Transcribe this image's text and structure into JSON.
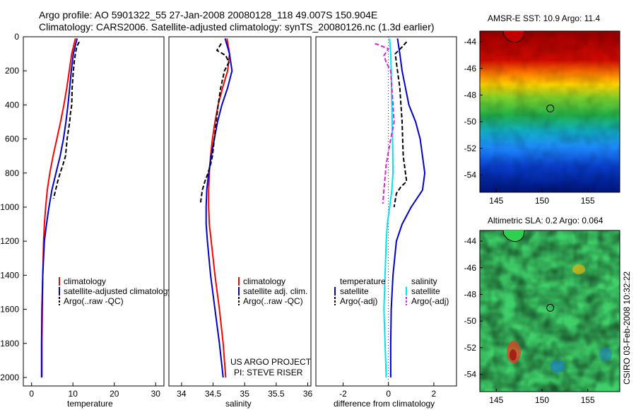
{
  "header": {
    "title_line1": "Argo profile: AO 5901322_55 27-Jan-2008 20080128_118 49.007S 150.904E",
    "title_line2": "Climatology: CARS2006. Satellite-adjusted climatology: synTS_20080126.nc (1.3d earlier)"
  },
  "footer": {
    "project": "US ARGO PROJECT",
    "pi": "PI: STEVE RISER",
    "stamp": "CSIRO 03-Feb-2008 10:32:22"
  },
  "colors": {
    "climatology": "#ff0000",
    "satellite": "#0000cc",
    "argo": "#000000",
    "satellite_cyan": "#00e5ee",
    "argo_magenta": "#e020e0"
  },
  "chart_data": [
    {
      "type": "line",
      "id": "temperature",
      "xlabel": "temperature",
      "xlim": [
        -2,
        32
      ],
      "ylim": [
        0,
        2050
      ],
      "y_reversed": true,
      "xticks": [
        0,
        10,
        20,
        30
      ],
      "yticks": [
        0,
        200,
        400,
        600,
        800,
        1000,
        1200,
        1400,
        1600,
        1800,
        2000
      ],
      "legend": [
        "climatology",
        "satellite-adjusted climatology",
        "Argo(..raw -QC)"
      ],
      "series": [
        {
          "name": "climatology",
          "color": "#ff0000",
          "style": "solid",
          "x": [
            10.6,
            10.2,
            9.7,
            9.1,
            8.5,
            7.8,
            7.0,
            6.1,
            5.2,
            4.4,
            3.8,
            3.4,
            3.1,
            2.9,
            2.7,
            2.6,
            2.5,
            2.5
          ],
          "y": [
            10,
            50,
            100,
            200,
            300,
            400,
            500,
            600,
            700,
            800,
            900,
            1000,
            1100,
            1200,
            1400,
            1600,
            1800,
            2000
          ]
        },
        {
          "name": "satellite-adjusted climatology",
          "color": "#0000cc",
          "style": "solid",
          "x": [
            11.0,
            10.6,
            10.1,
            9.6,
            9.2,
            8.8,
            8.3,
            7.7,
            6.9,
            5.9,
            4.9,
            4.2,
            3.6,
            3.1,
            2.7,
            2.5,
            2.4,
            2.4
          ],
          "y": [
            10,
            50,
            100,
            200,
            300,
            400,
            500,
            600,
            700,
            800,
            900,
            1000,
            1100,
            1200,
            1400,
            1600,
            1800,
            2000
          ]
        },
        {
          "name": "Argo(..raw -QC)",
          "color": "#000000",
          "style": "dashed",
          "x": [
            11.5,
            10.9,
            10.6,
            10.3,
            10.1,
            9.8,
            9.7,
            9.4,
            9.2,
            8.9,
            8.6,
            8.2,
            7.6,
            6.9,
            6.3,
            5.8,
            5.3
          ],
          "y": [
            30,
            60,
            100,
            150,
            200,
            300,
            400,
            450,
            500,
            550,
            600,
            700,
            750,
            800,
            850,
            900,
            950
          ]
        }
      ]
    },
    {
      "type": "line",
      "id": "salinity",
      "xlabel": "salinity",
      "xlim": [
        33.8,
        36.05
      ],
      "ylim": [
        0,
        2050
      ],
      "y_reversed": true,
      "xticks": [
        34,
        34.5,
        35,
        35.5,
        36
      ],
      "xticklabels": [
        "34",
        "34.5",
        "35",
        "35.5",
        "36"
      ],
      "legend": [
        "climatology",
        "satellite adj. clim.",
        "Argo(..raw -QC)"
      ],
      "series": [
        {
          "name": "climatology",
          "color": "#ff0000",
          "style": "solid",
          "x": [
            34.72,
            34.76,
            34.73,
            34.65,
            34.58,
            34.53,
            34.49,
            34.46,
            34.44,
            34.43,
            34.43,
            34.44,
            34.47,
            34.53,
            34.6,
            34.66,
            34.7
          ],
          "y": [
            10,
            100,
            200,
            300,
            400,
            500,
            600,
            700,
            800,
            900,
            1000,
            1100,
            1200,
            1400,
            1600,
            1800,
            2000
          ]
        },
        {
          "name": "satellite adj. clim.",
          "color": "#0000cc",
          "style": "solid",
          "x": [
            34.69,
            34.76,
            34.8,
            34.73,
            34.64,
            34.57,
            34.52,
            34.47,
            34.43,
            34.4,
            34.39,
            34.39,
            34.41,
            34.46,
            34.53,
            34.6,
            34.66
          ],
          "y": [
            10,
            100,
            200,
            300,
            400,
            500,
            600,
            700,
            800,
            900,
            1000,
            1100,
            1200,
            1400,
            1600,
            1800,
            2000
          ]
        },
        {
          "name": "Argo(..raw -QC)",
          "color": "#000000",
          "style": "dashed",
          "x": [
            34.63,
            34.56,
            34.7,
            34.75,
            34.68,
            34.62,
            34.58,
            34.55,
            34.52,
            34.49,
            34.46,
            34.42,
            34.37,
            34.33,
            34.31,
            34.3
          ],
          "y": [
            40,
            80,
            110,
            150,
            200,
            300,
            400,
            500,
            600,
            700,
            750,
            800,
            850,
            900,
            950,
            980
          ]
        }
      ]
    },
    {
      "type": "line",
      "id": "difference",
      "xlabel": "difference from climatology",
      "xlim": [
        -3.2,
        3.0
      ],
      "ylim": [
        0,
        2050
      ],
      "y_reversed": true,
      "xticks": [
        -2,
        0,
        2
      ],
      "legend_group1": {
        "title": "temperature",
        "items": [
          "satellite",
          "Argo(-adj)"
        ]
      },
      "legend_group2": {
        "title": "salinity",
        "items": [
          "satellite",
          "Argo(-adj)"
        ]
      },
      "series": [
        {
          "name": "temperature satellite",
          "color": "#0000cc",
          "style": "solid",
          "x": [
            0.4,
            0.5,
            0.6,
            0.9,
            1.2,
            1.4,
            1.6,
            1.5,
            1.0,
            0.6,
            0.35,
            0.2,
            0.12,
            0.1,
            0.1
          ],
          "y": [
            10,
            100,
            200,
            400,
            500,
            600,
            800,
            900,
            1000,
            1100,
            1200,
            1400,
            1600,
            1800,
            2000
          ]
        },
        {
          "name": "salinity satellite",
          "color": "#00e5ee",
          "style": "solid",
          "x": [
            0.05,
            0.1,
            0.12,
            0.15,
            0.18,
            0.2,
            0.15,
            0.05,
            -0.05,
            -0.1,
            -0.15,
            -0.2,
            -0.15,
            -0.1
          ],
          "y": [
            10,
            100,
            200,
            400,
            600,
            800,
            900,
            1000,
            1100,
            1200,
            1400,
            1600,
            1800,
            2000
          ]
        },
        {
          "name": "temperature Argo(-adj)",
          "color": "#000000",
          "style": "dashed",
          "x": [
            0.8,
            0.6,
            0.3,
            0.4,
            0.5,
            0.55,
            0.6,
            0.65,
            0.8,
            0.55,
            0.35,
            0.3,
            0.25
          ],
          "y": [
            30,
            60,
            100,
            200,
            300,
            400,
            500,
            700,
            850,
            880,
            920,
            960,
            1000
          ]
        },
        {
          "name": "salinity Argo(-adj)",
          "color": "#e020e0",
          "style": "dashed",
          "x": [
            -0.6,
            0.0,
            -0.2,
            -0.1,
            0.1,
            0.15,
            0.2,
            0.25,
            0.1,
            -0.1,
            -0.2,
            -0.25
          ],
          "y": [
            40,
            70,
            110,
            150,
            200,
            300,
            400,
            500,
            600,
            750,
            900,
            980
          ]
        }
      ]
    },
    {
      "type": "heatmap",
      "id": "sst_map",
      "title": "AMSR-E SST: 10.9 Argo: 11.4",
      "xlim": [
        143.2,
        158.5
      ],
      "ylim": [
        -55.3,
        -43.2
      ],
      "xticks": [
        145,
        150,
        155
      ],
      "yticks": [
        -44,
        -46,
        -48,
        -50,
        -52,
        -54
      ],
      "marker": {
        "lon": 150.904,
        "lat": -49.007
      }
    },
    {
      "type": "heatmap",
      "id": "sla_map",
      "title": "Altimetric SLA: 0.2 Argo: 0.064",
      "xlim": [
        143.2,
        158.5
      ],
      "ylim": [
        -55.3,
        -43.2
      ],
      "xticks": [
        145,
        150,
        155
      ],
      "yticks": [
        -44,
        -46,
        -48,
        -50,
        -52,
        -54
      ],
      "marker": {
        "lon": 150.904,
        "lat": -49.007
      }
    }
  ]
}
